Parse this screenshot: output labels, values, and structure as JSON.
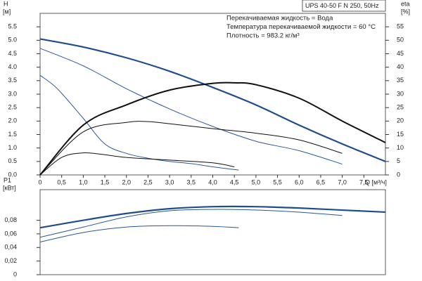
{
  "chart_data": [
    {
      "type": "line",
      "title": "UPS 40-50 F N 250, 50Hz",
      "annotations": [
        "Перекачиваемая жидкость = Вода",
        "Температура перекачиваемой жидкости = 60 °C",
        "Плотность = 983.2 кг/м³"
      ],
      "ylabel": "H",
      "yunit": "[м]",
      "y2label": "eta",
      "y2unit": "[%]",
      "xlabel": "Q [м³/ч]",
      "xlim": [
        0,
        8
      ],
      "ylim": [
        0,
        6
      ],
      "y2lim": [
        0,
        60
      ],
      "xticks": [
        0,
        {
          "value": 0.5,
          "label": "0,5"
        },
        {
          "value": 1,
          "label": "1,0"
        },
        {
          "value": 1.5,
          "label": "1,5"
        },
        {
          "value": 2,
          "label": "2,0"
        },
        {
          "value": 2.5,
          "label": "2,5"
        },
        {
          "value": 3,
          "label": "3,0"
        },
        {
          "value": 3.5,
          "label": "3,5"
        },
        {
          "value": 4,
          "label": "4,0"
        },
        {
          "value": 4.5,
          "label": "4,5"
        },
        {
          "value": 5,
          "label": "5,0"
        },
        {
          "value": 5.5,
          "label": "5,5"
        },
        {
          "value": 6,
          "label": "6,0"
        },
        {
          "value": 6.5,
          "label": "6,5"
        },
        {
          "value": 7,
          "label": "7,0"
        },
        {
          "value": 7.5,
          "label": "7,5"
        }
      ],
      "yticks": [
        {
          "value": 0,
          "label": "0.0"
        },
        0.5,
        {
          "value": 1,
          "label": "1.0"
        },
        1.5,
        {
          "value": 2,
          "label": "2.0"
        },
        2.5,
        {
          "value": 3,
          "label": "3.0"
        },
        3.5,
        {
          "value": 4,
          "label": "4.0"
        },
        4.5,
        {
          "value": 5,
          "label": "5.0"
        },
        5.5
      ],
      "y2ticks": [
        0,
        5,
        10,
        15,
        20,
        25,
        30,
        35,
        40,
        45,
        50,
        55
      ],
      "series": [
        {
          "color": "#1f4e8c",
          "width": 2.2,
          "x": [
            0,
            1,
            2,
            3,
            4,
            5,
            6,
            7,
            8
          ],
          "values": [
            5.05,
            4.75,
            4.35,
            3.85,
            3.25,
            2.6,
            1.85,
            1.15,
            0.5
          ]
        },
        {
          "color": "#2b5797",
          "width": 1,
          "x": [
            0,
            1,
            2,
            3,
            4,
            5,
            6,
            7
          ],
          "values": [
            4.7,
            4.05,
            3.2,
            2.45,
            1.8,
            1.25,
            0.9,
            0.4
          ]
        },
        {
          "color": "#2b5797",
          "width": 1,
          "x": [
            0,
            0.4,
            1,
            1.5,
            2,
            2.5,
            3,
            3.5,
            4,
            4.6
          ],
          "values": [
            3.7,
            3.2,
            2.1,
            1.15,
            0.8,
            0.62,
            0.5,
            0.42,
            0.3,
            0.18
          ]
        },
        {
          "color": "#111111",
          "width": 2,
          "axis": "y2",
          "x": [
            0,
            1,
            2,
            3,
            4,
            4.5,
            5,
            6,
            7,
            8
          ],
          "values": [
            0,
            18.5,
            26,
            31.5,
            34,
            34.2,
            33.5,
            28.5,
            20,
            12
          ]
        },
        {
          "color": "#111111",
          "width": 1,
          "axis": "y2",
          "x": [
            0,
            1,
            2,
            2.5,
            3,
            4,
            5,
            6,
            7
          ],
          "values": [
            0,
            16,
            19.5,
            19.8,
            19,
            17.2,
            15.5,
            13,
            8
          ]
        },
        {
          "color": "#111111",
          "width": 1,
          "axis": "y2",
          "x": [
            0,
            0.5,
            1,
            1.5,
            2,
            3,
            4,
            4.5
          ],
          "values": [
            0,
            6.5,
            8.2,
            7.5,
            6.5,
            5.5,
            4.5,
            3
          ]
        }
      ]
    },
    {
      "type": "line",
      "ylabel": "P1",
      "yunit": "[кВт]",
      "xlim": [
        0,
        8
      ],
      "ylim": [
        0,
        0.125
      ],
      "yticks": [
        0,
        {
          "value": 0.02,
          "label": "0,02"
        },
        {
          "value": 0.04,
          "label": "0,04"
        },
        {
          "value": 0.06,
          "label": "0,06"
        },
        {
          "value": 0.08,
          "label": "0,08"
        }
      ],
      "series": [
        {
          "color": "#1f4e8c",
          "width": 2.2,
          "x": [
            0,
            1,
            2,
            3,
            4,
            5,
            6,
            7,
            8
          ],
          "values": [
            0.069,
            0.08,
            0.09,
            0.097,
            0.1,
            0.1,
            0.098,
            0.095,
            0.092
          ]
        },
        {
          "color": "#2b5797",
          "width": 1,
          "x": [
            0,
            1,
            2,
            3,
            4,
            5,
            6,
            7
          ],
          "values": [
            0.055,
            0.07,
            0.085,
            0.094,
            0.096,
            0.095,
            0.092,
            0.087
          ]
        },
        {
          "color": "#2b5797",
          "width": 1,
          "x": [
            0,
            1,
            2,
            3,
            4,
            4.6
          ],
          "values": [
            0.048,
            0.062,
            0.07,
            0.072,
            0.071,
            0.069
          ]
        }
      ]
    }
  ]
}
